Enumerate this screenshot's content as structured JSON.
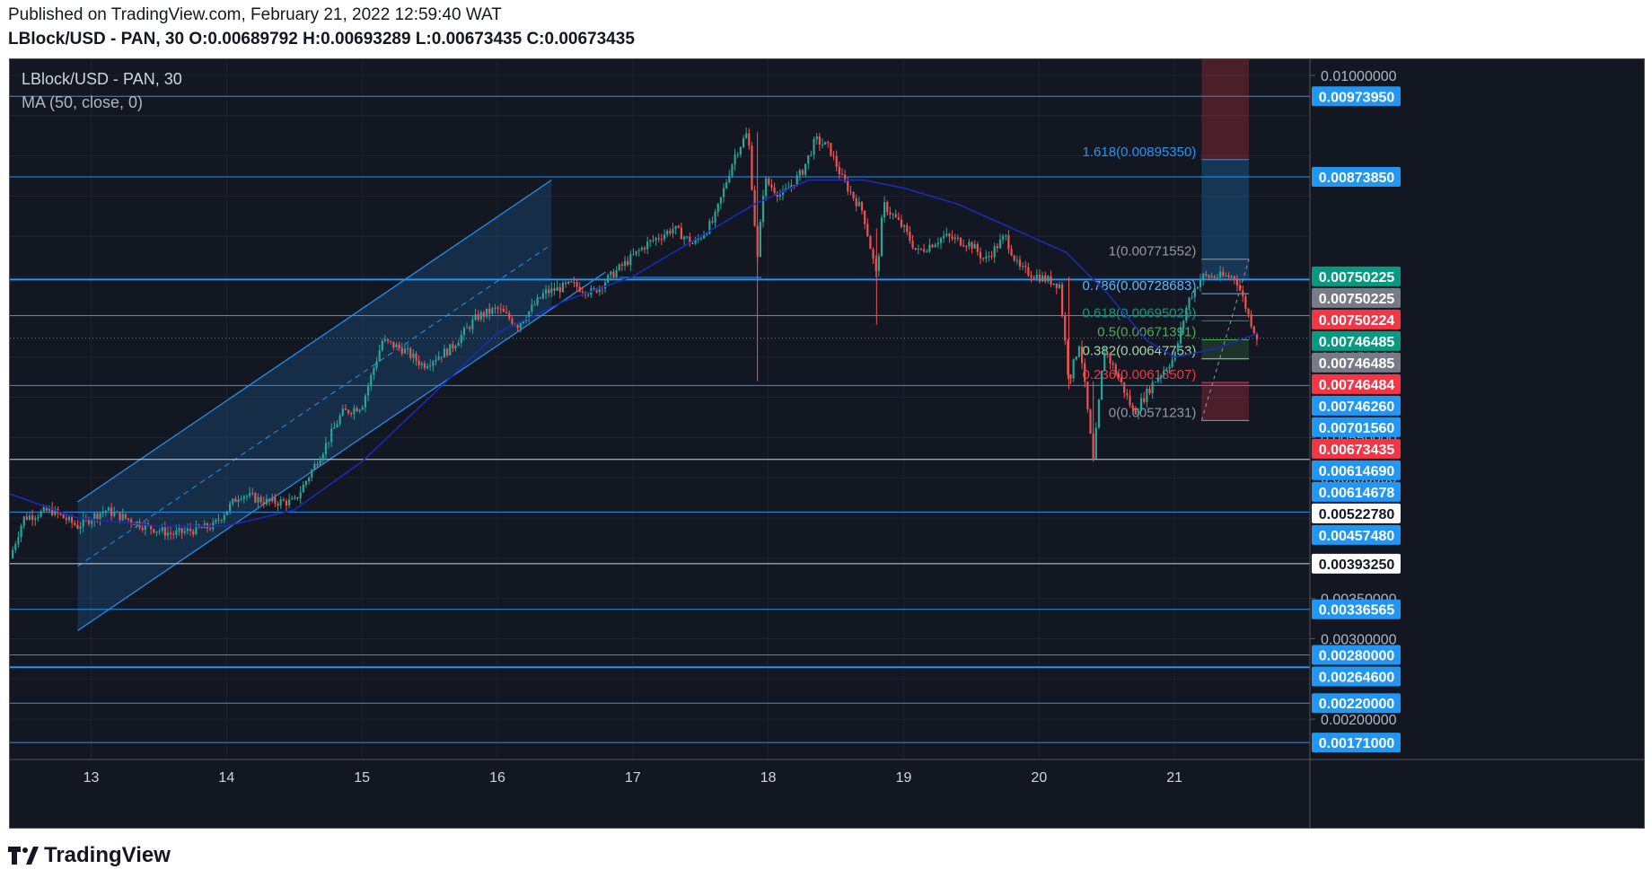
{
  "header": {
    "published": "Published on TradingView.com, February 21, 2022 12:59:40 WAT",
    "symbol": "LBlock/USD - PAN, 30",
    "o_label": "O:",
    "o_value": "0.00689792",
    "h_label": "H:",
    "h_value": "0.00693289",
    "l_label": "L:",
    "l_value": "0.00673435",
    "c_label": "C:",
    "c_value": "0.00673435"
  },
  "legend": {
    "symbol": "LBlock/USD - PAN, 30",
    "indicator": "MA (50, close, 0)"
  },
  "footer": {
    "brand": "TradingView"
  },
  "colors": {
    "background": "#131722",
    "grid": "#1e2230",
    "up": "#26a69a",
    "down": "#ef5350",
    "ma": "#1a2bb5",
    "hline": "#2196f3",
    "fib_1618": "#2196f3",
    "fib_1": "#9598a1",
    "fib_0786": "#64b5f6",
    "fib_0618": "#089981",
    "fib_05": "#4caf50",
    "fib_0382": "#a5d6a7",
    "fib_0236": "#f23645",
    "fib_0": "#9598a1"
  },
  "chart_data": {
    "type": "candlestick",
    "title": "LBlock/USD - PAN, 30",
    "x_ticks": [
      "13",
      "14",
      "15",
      "16",
      "17",
      "18",
      "19",
      "20",
      "21"
    ],
    "x_range_days": [
      12.4,
      22.0
    ],
    "y_range": [
      0.0015,
      0.0102
    ],
    "y_ticks": [
      "0.01000000",
      "0.00650000",
      "0.00550000",
      "0.00500000",
      "0.00350000",
      "0.00300000",
      "0.00200000"
    ],
    "price_labels": [
      {
        "value": "0.00973950",
        "style": "blue"
      },
      {
        "value": "0.00873850",
        "style": "blue"
      },
      {
        "value": "0.00750225",
        "style": "teal"
      },
      {
        "value": "0.00750225",
        "style": "gray"
      },
      {
        "value": "0.00750224",
        "style": "red"
      },
      {
        "value": "0.00746485",
        "style": "teal"
      },
      {
        "value": "0.00746485",
        "style": "gray"
      },
      {
        "value": "0.00746484",
        "style": "red"
      },
      {
        "value": "0.00746260",
        "style": "blue"
      },
      {
        "value": "0.00701560",
        "style": "blue"
      },
      {
        "value": "0.00673435",
        "style": "red"
      },
      {
        "value": "0.00614690",
        "style": "blue"
      },
      {
        "value": "0.00614678",
        "style": "blue"
      },
      {
        "value": "0.00522780",
        "style": "white"
      },
      {
        "value": "0.00457480",
        "style": "blue"
      },
      {
        "value": "0.00393250",
        "style": "white"
      },
      {
        "value": "0.00336565",
        "style": "blue"
      },
      {
        "value": "0.00280000",
        "style": "blue"
      },
      {
        "value": "0.00264600",
        "style": "blue"
      },
      {
        "value": "0.00220000",
        "style": "blue"
      },
      {
        "value": "0.00171000",
        "style": "blue"
      }
    ],
    "horizontal_levels": [
      0.0097395,
      0.0087385,
      0.0074626,
      0.0070156,
      0.0061469,
      0.0052278,
      0.0045748,
      0.0039325,
      0.00336565,
      0.0028,
      0.002646,
      0.0022,
      0.00171
    ],
    "fib_levels": [
      {
        "label": "1.618(0.00895350)",
        "ratio": 1.618,
        "value": 0.0089535
      },
      {
        "label": "1(0.00771552)",
        "ratio": 1,
        "value": 0.00771552
      },
      {
        "label": "0.786(0.00728683)",
        "ratio": 0.786,
        "value": 0.00728683
      },
      {
        "label": "0.618(0.00695029)",
        "ratio": 0.618,
        "value": 0.00695029
      },
      {
        "label": "0.5(0.00671391)",
        "ratio": 0.5,
        "value": 0.00671391
      },
      {
        "label": "0.382(0.00647753)",
        "ratio": 0.382,
        "value": 0.00647753
      },
      {
        "label": "0.236(0.00618507)",
        "ratio": 0.236,
        "value": 0.00618507
      },
      {
        "label": "0(0.00571231)",
        "ratio": 0,
        "value": 0.00571231
      }
    ],
    "last_price": 0.00673435,
    "channel": {
      "start_day": 12.9,
      "end_day": 16.4,
      "lower_start": 0.0031,
      "lower_end": 0.0071,
      "upper_start": 0.0047,
      "upper_end": 0.0087
    },
    "price_path": [
      [
        12.4,
        0.004
      ],
      [
        12.5,
        0.0045
      ],
      [
        12.7,
        0.0046
      ],
      [
        12.9,
        0.0044
      ],
      [
        13.1,
        0.0046
      ],
      [
        13.4,
        0.0044
      ],
      [
        13.6,
        0.0043
      ],
      [
        13.9,
        0.0044
      ],
      [
        14.1,
        0.0048
      ],
      [
        14.3,
        0.0047
      ],
      [
        14.5,
        0.0047
      ],
      [
        14.7,
        0.0053
      ],
      [
        14.85,
        0.0058
      ],
      [
        15.0,
        0.0059
      ],
      [
        15.15,
        0.0067
      ],
      [
        15.3,
        0.0066
      ],
      [
        15.45,
        0.0064
      ],
      [
        15.65,
        0.0066
      ],
      [
        15.85,
        0.007
      ],
      [
        16.0,
        0.0071
      ],
      [
        16.15,
        0.0069
      ],
      [
        16.35,
        0.0073
      ],
      [
        16.55,
        0.0074
      ],
      [
        16.7,
        0.0073
      ],
      [
        16.9,
        0.0076
      ],
      [
        17.1,
        0.0079
      ],
      [
        17.3,
        0.0081
      ],
      [
        17.45,
        0.0079
      ],
      [
        17.6,
        0.0082
      ],
      [
        17.75,
        0.009
      ],
      [
        17.85,
        0.0093
      ],
      [
        17.92,
        0.0077
      ],
      [
        17.97,
        0.0087
      ],
      [
        18.1,
        0.0085
      ],
      [
        18.25,
        0.0088
      ],
      [
        18.35,
        0.0092
      ],
      [
        18.45,
        0.0091
      ],
      [
        18.55,
        0.0087
      ],
      [
        18.7,
        0.0083
      ],
      [
        18.8,
        0.0075
      ],
      [
        18.85,
        0.0084
      ],
      [
        19.0,
        0.0081
      ],
      [
        19.1,
        0.0078
      ],
      [
        19.3,
        0.008
      ],
      [
        19.5,
        0.0079
      ],
      [
        19.6,
        0.0077
      ],
      [
        19.75,
        0.008
      ],
      [
        19.85,
        0.0076
      ],
      [
        20.0,
        0.0075
      ],
      [
        20.15,
        0.0074
      ],
      [
        20.22,
        0.0062
      ],
      [
        20.3,
        0.0067
      ],
      [
        20.4,
        0.0052
      ],
      [
        20.48,
        0.0066
      ],
      [
        20.6,
        0.0062
      ],
      [
        20.7,
        0.0058
      ],
      [
        20.85,
        0.0062
      ],
      [
        21.0,
        0.0065
      ],
      [
        21.1,
        0.0072
      ],
      [
        21.2,
        0.0075
      ],
      [
        21.35,
        0.0075
      ],
      [
        21.45,
        0.0075
      ],
      [
        21.55,
        0.007
      ],
      [
        21.62,
        0.0067
      ]
    ],
    "ma_path": [
      [
        12.4,
        0.0048
      ],
      [
        12.9,
        0.0045
      ],
      [
        13.5,
        0.0044
      ],
      [
        14.0,
        0.0044
      ],
      [
        14.5,
        0.0046
      ],
      [
        15.0,
        0.0052
      ],
      [
        15.5,
        0.006
      ],
      [
        16.0,
        0.0068
      ],
      [
        16.5,
        0.0072
      ],
      [
        17.0,
        0.0075
      ],
      [
        17.5,
        0.008
      ],
      [
        17.9,
        0.0084
      ],
      [
        18.3,
        0.0087
      ],
      [
        18.7,
        0.0087
      ],
      [
        19.0,
        0.0086
      ],
      [
        19.4,
        0.0084
      ],
      [
        19.8,
        0.0081
      ],
      [
        20.2,
        0.0078
      ],
      [
        20.5,
        0.0073
      ],
      [
        20.8,
        0.0067
      ],
      [
        21.0,
        0.0065
      ],
      [
        21.3,
        0.0066
      ],
      [
        21.62,
        0.0068
      ]
    ]
  }
}
